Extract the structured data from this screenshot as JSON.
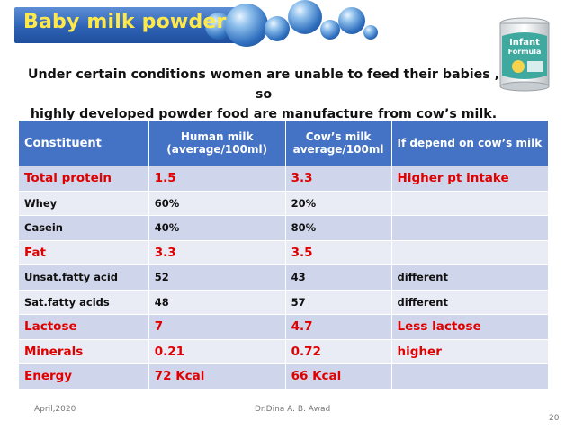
{
  "title": "Baby milk powder",
  "subtitle_line1": "Under certain conditions women are unable to feed their babies , so",
  "subtitle_line2": "highly developed powder food are manufacture from cow’s milk.",
  "product_image": {
    "brand_line1": "Infant",
    "brand_line2": "Formula"
  },
  "table": {
    "headers": [
      "Constituent",
      "Human milk (average/100ml)",
      "Cow’s milk average/100ml",
      "If depend on cow’s milk"
    ],
    "rows": [
      {
        "highlight": true,
        "cells": [
          "Total protein",
          "1.5",
          "3.3",
          "Higher pt intake"
        ]
      },
      {
        "highlight": false,
        "cells": [
          "Whey",
          "60%",
          "20%",
          ""
        ]
      },
      {
        "highlight": false,
        "cells": [
          "Casein",
          "40%",
          "80%",
          ""
        ]
      },
      {
        "highlight": true,
        "cells": [
          "Fat",
          "3.3",
          "3.5",
          ""
        ]
      },
      {
        "highlight": false,
        "cells": [
          "Unsat.fatty acid",
          "52",
          "43",
          "different"
        ]
      },
      {
        "highlight": false,
        "cells": [
          "Sat.fatty acids",
          "48",
          "57",
          "different"
        ]
      },
      {
        "highlight": true,
        "cells": [
          "Lactose",
          "7",
          "4.7",
          "Less lactose"
        ]
      },
      {
        "highlight": true,
        "cells": [
          "Minerals",
          "0.21",
          "0.72",
          "higher"
        ]
      },
      {
        "highlight": true,
        "cells": [
          "Energy",
          "72 Kcal",
          "66 Kcal",
          ""
        ]
      }
    ]
  },
  "footer": {
    "date": "April,2020",
    "author": "Dr.Dina A. B. Awad",
    "page": "20"
  },
  "colors": {
    "header_bg": "#4472c4",
    "highlight_text": "#e00000",
    "title_text": "#ffe94a"
  }
}
